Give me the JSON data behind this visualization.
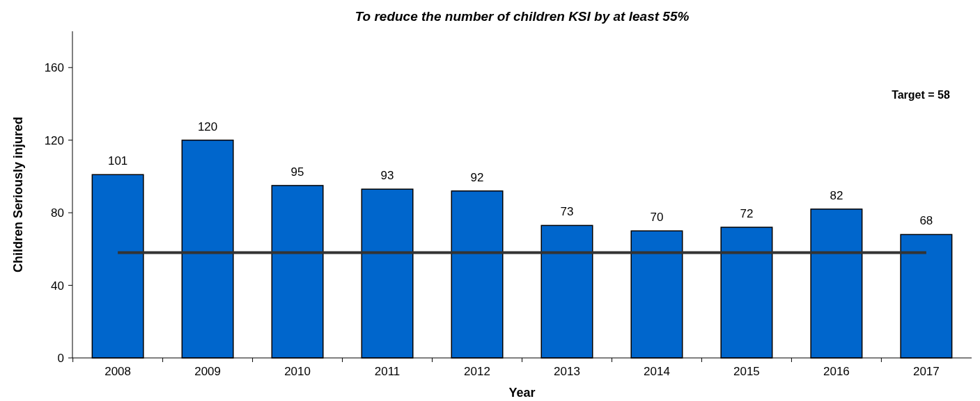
{
  "chart_data": {
    "type": "bar",
    "title": "To reduce the number of children KSI by at least 55%",
    "xlabel": "Year",
    "ylabel": "Children Seriously injured",
    "categories": [
      "2008",
      "2009",
      "2010",
      "2011",
      "2012",
      "2013",
      "2014",
      "2015",
      "2016",
      "2017"
    ],
    "values": [
      101,
      120,
      95,
      93,
      92,
      73,
      70,
      72,
      82,
      68
    ],
    "color": "#0066cc",
    "data_labels": true,
    "ylim": [
      0,
      180
    ],
    "yticks": [
      0,
      40,
      80,
      120,
      160
    ],
    "grid": false,
    "annotations": [
      "Target = 58"
    ],
    "ref_lines": [
      {
        "axis": "y",
        "value": 58,
        "color": "#333333"
      }
    ]
  }
}
